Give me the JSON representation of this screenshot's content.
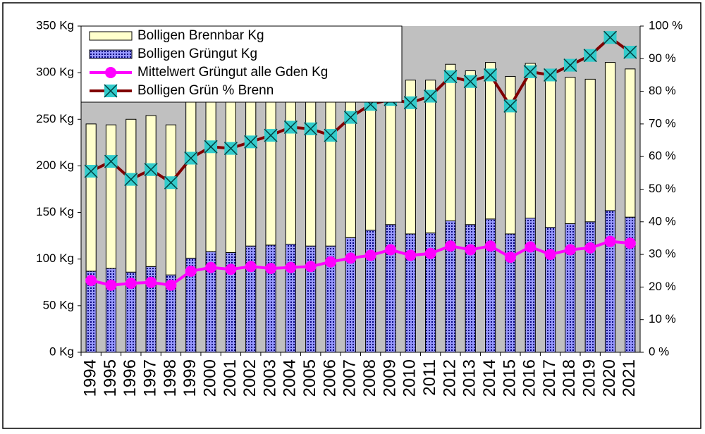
{
  "chart_data": {
    "type": "combo",
    "stacked": true,
    "grid": false,
    "legend": "upper left",
    "background": "#c0c0c0",
    "categories": [
      "1994",
      "1995",
      "1996",
      "1997",
      "1998",
      "1999",
      "2000",
      "2001",
      "2002",
      "2003",
      "2004",
      "2005",
      "2006",
      "2007",
      "2008",
      "2009",
      "2010",
      "2011",
      "2012",
      "2013",
      "2014",
      "2015",
      "2016",
      "2017",
      "2018",
      "2019",
      "2020",
      "2021"
    ],
    "series": [
      {
        "name": "Bolligen Brennbar Kg",
        "type": "bar",
        "axis": "y",
        "color": "#ffffcc",
        "values": [
          158,
          154,
          164,
          162,
          161,
          170,
          171,
          171,
          177,
          173,
          168,
          166,
          171,
          171,
          172,
          177,
          165,
          164,
          168,
          165,
          168,
          169,
          166,
          158,
          157,
          153,
          159,
          159
        ]
      },
      {
        "name": "Bolligen Grüngut Kg",
        "type": "bar",
        "axis": "y",
        "color": "#9999ff",
        "values": [
          87,
          90,
          86,
          92,
          83,
          101,
          108,
          107,
          114,
          115,
          116,
          114,
          114,
          123,
          131,
          137,
          127,
          128,
          141,
          137,
          143,
          127,
          144,
          134,
          138,
          140,
          152,
          145
        ]
      },
      {
        "name": "Mittelwert Grüngut alle Gden Kg",
        "type": "line",
        "axis": "y",
        "color": "#ff00ff",
        "values": [
          77,
          72,
          74,
          75,
          72,
          87,
          91,
          89,
          92,
          90,
          91,
          92,
          97,
          101,
          104,
          110,
          104,
          106,
          114,
          110,
          114,
          102,
          113,
          105,
          110,
          112,
          119,
          117
        ]
      },
      {
        "name": "Bolligen Grün % Brenn",
        "type": "line",
        "axis": "y2",
        "color": "#800000",
        "marker_color": "#33cccc",
        "values": [
          55.5,
          58.5,
          53,
          56,
          52,
          59.5,
          63,
          62.5,
          64.5,
          66.5,
          69,
          68.5,
          66.5,
          72,
          76,
          77.5,
          76.5,
          78.5,
          84.5,
          83,
          85,
          75.5,
          86,
          85,
          88,
          91,
          96.5,
          92
        ]
      }
    ],
    "ylim": [
      0,
      350
    ],
    "yticks": [
      {
        "value": 0,
        "label": "0 Kg"
      },
      {
        "value": 50,
        "label": "50 Kg"
      },
      {
        "value": 100,
        "label": "100 Kg"
      },
      {
        "value": 150,
        "label": "150 Kg"
      },
      {
        "value": 200,
        "label": "200 Kg"
      },
      {
        "value": 250,
        "label": "250 Kg"
      },
      {
        "value": 300,
        "label": "300 Kg"
      },
      {
        "value": 350,
        "label": "350 Kg"
      }
    ],
    "y2lim": [
      0,
      100
    ],
    "y2ticks": [
      {
        "value": 0,
        "label": "0 %"
      },
      {
        "value": 10,
        "label": "10 %"
      },
      {
        "value": 20,
        "label": "20 %"
      },
      {
        "value": 30,
        "label": "30 %"
      },
      {
        "value": 40,
        "label": "40 %"
      },
      {
        "value": 50,
        "label": "50 %"
      },
      {
        "value": 60,
        "label": "60 %"
      },
      {
        "value": 70,
        "label": "70 %"
      },
      {
        "value": 80,
        "label": "80 %"
      },
      {
        "value": 90,
        "label": "90 %"
      },
      {
        "value": 100,
        "label": "100 %"
      }
    ]
  }
}
